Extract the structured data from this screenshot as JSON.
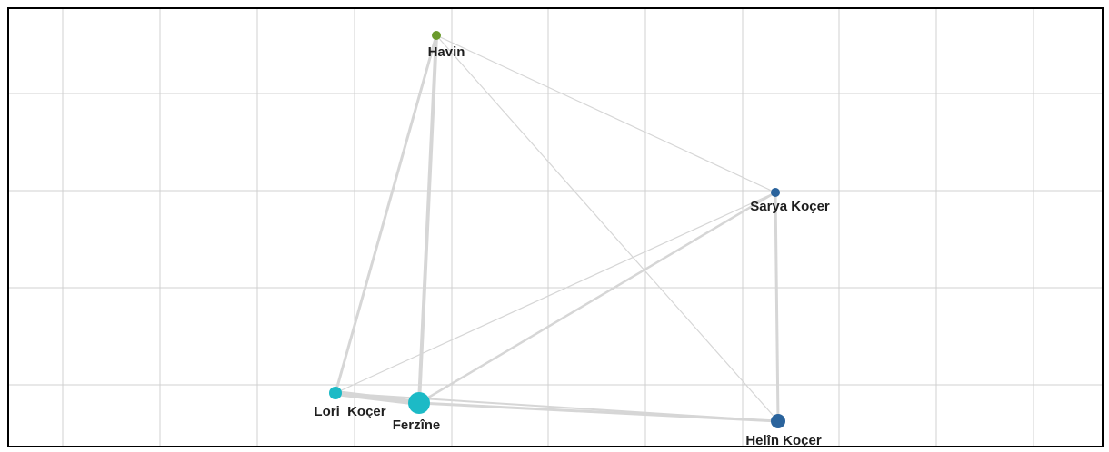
{
  "graph": {
    "nodes": [
      {
        "id": "havin",
        "label": "Havin",
        "color": "#6a9a2c"
      },
      {
        "id": "sarya",
        "label": "Sarya Koçer",
        "color": "#2a639c"
      },
      {
        "id": "lori",
        "label": "Lori  Koçer",
        "color": "#1cbac6"
      },
      {
        "id": "ferzine",
        "label": "Ferzîne",
        "color": "#1cbac6"
      },
      {
        "id": "helin",
        "label": "Helîn Koçer",
        "color": "#2a639c"
      }
    ],
    "edges": [
      {
        "from": "havin",
        "to": "lori"
      },
      {
        "from": "havin",
        "to": "ferzine"
      },
      {
        "from": "havin",
        "to": "sarya"
      },
      {
        "from": "havin",
        "to": "helin"
      },
      {
        "from": "sarya",
        "to": "lori"
      },
      {
        "from": "sarya",
        "to": "ferzine"
      },
      {
        "from": "sarya",
        "to": "helin"
      },
      {
        "from": "lori",
        "to": "ferzine"
      },
      {
        "from": "lori",
        "to": "helin"
      },
      {
        "from": "ferzine",
        "to": "helin"
      }
    ],
    "colors": {
      "edge": "#d6d6d6",
      "grid": "#d0d0d0",
      "frame": "#000000"
    }
  }
}
